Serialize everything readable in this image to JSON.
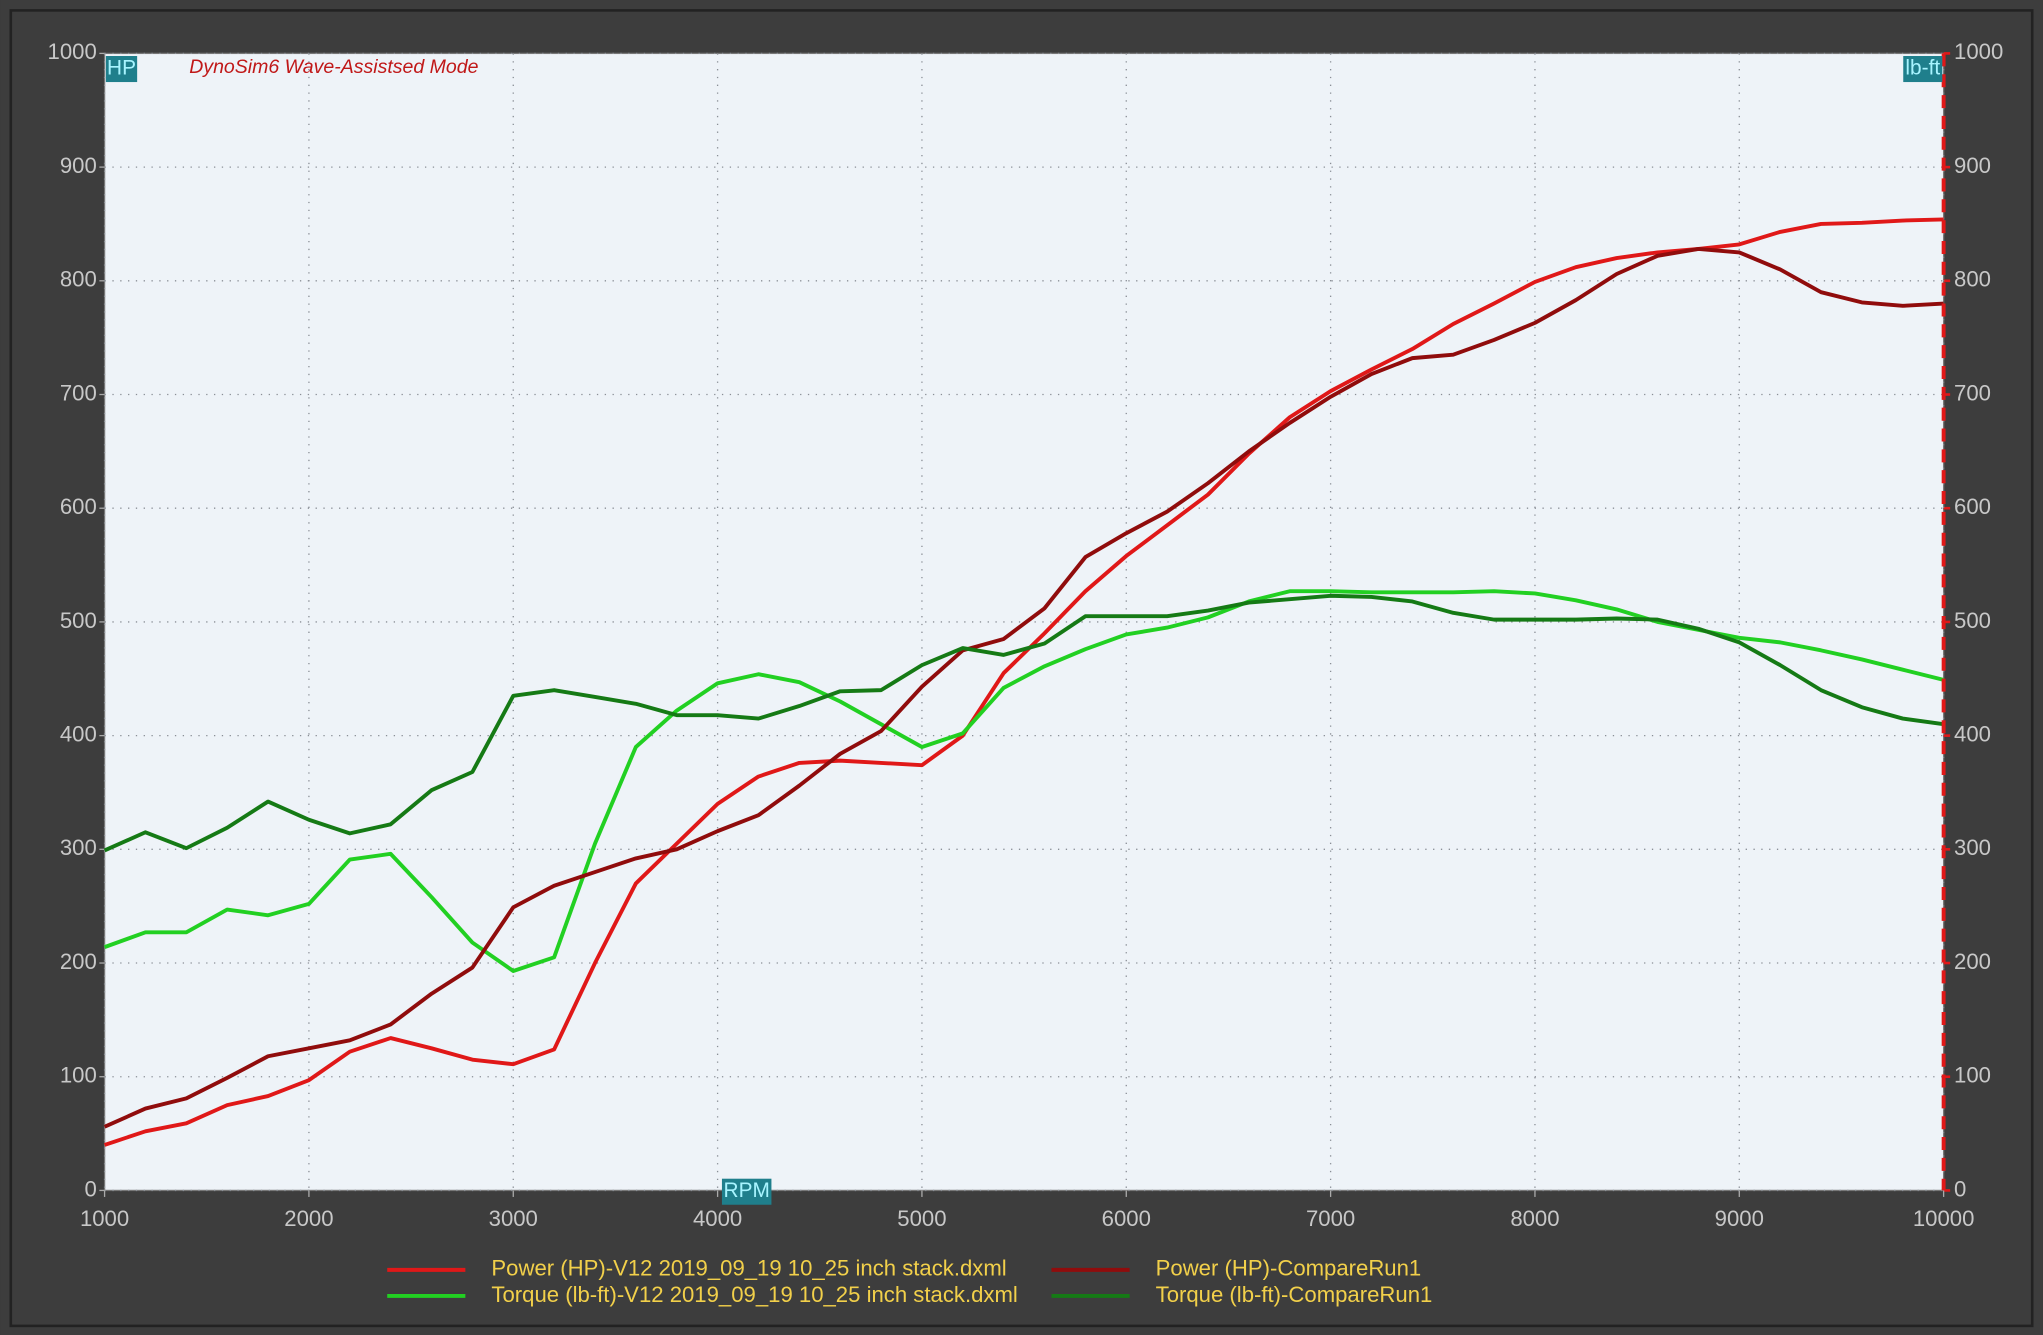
{
  "chart_data": {
    "type": "line",
    "subtitle": "DynoSim6 Wave-Assistsed Mode",
    "y_label": "HP",
    "y2_label": "lb-ft",
    "x_label": "RPM",
    "x": [
      1000,
      1200,
      1400,
      1600,
      1800,
      2000,
      2200,
      2400,
      2600,
      2800,
      3000,
      3200,
      3400,
      3600,
      3800,
      4000,
      4200,
      4400,
      4600,
      4800,
      5000,
      5200,
      5400,
      5600,
      5800,
      6000,
      6200,
      6400,
      6600,
      6800,
      7000,
      7200,
      7400,
      7600,
      7800,
      8000,
      8200,
      8400,
      8600,
      8800,
      9000,
      9200,
      9400,
      9600,
      9800,
      10000
    ],
    "series": [
      {
        "name": "Power (HP)-V12 2019_09_19 10_25 inch stack.dxml",
        "color": "#e01818",
        "values": [
          40,
          52,
          59,
          75,
          83,
          97,
          122,
          134,
          125,
          115,
          111,
          124,
          200,
          270,
          305,
          340,
          364,
          376,
          378,
          376,
          374,
          400,
          455,
          490,
          527,
          558,
          585,
          612,
          648,
          680,
          703,
          722,
          740,
          762,
          780,
          799,
          812,
          820,
          825,
          828,
          832,
          843,
          850,
          851,
          853,
          854
        ]
      },
      {
        "name": "Torque (lb-ft)-V12 2019_09_19 10_25 inch stack.dxml",
        "color": "#22d022",
        "axis": "y2",
        "values": [
          214,
          227,
          227,
          247,
          242,
          252,
          291,
          296,
          258,
          218,
          193,
          205,
          305,
          390,
          422,
          446,
          454,
          447,
          430,
          410,
          390,
          402,
          442,
          461,
          476,
          489,
          495,
          504,
          518,
          527,
          527,
          526,
          526,
          526,
          527,
          525,
          519,
          511,
          500,
          493,
          486,
          482,
          475,
          467,
          458,
          449
        ]
      },
      {
        "name": "Power (HP)-CompareRun1",
        "color": "#900c0c",
        "values": [
          56,
          72,
          81,
          99,
          118,
          125,
          132,
          146,
          173,
          196,
          249,
          268,
          280,
          292,
          300,
          316,
          330,
          356,
          384,
          404,
          443,
          475,
          485,
          512,
          557,
          578,
          597,
          622,
          650,
          675,
          698,
          718,
          732,
          735,
          748,
          763,
          783,
          806,
          822,
          828,
          825,
          810,
          790,
          781,
          778,
          780
        ]
      },
      {
        "name": "Torque (lb-ft)-CompareRun1",
        "color": "#157a15",
        "axis": "y2",
        "values": [
          299,
          315,
          301,
          319,
          342,
          326,
          314,
          322,
          352,
          368,
          435,
          440,
          434,
          428,
          418,
          418,
          415,
          426,
          439,
          440,
          462,
          477,
          471,
          481,
          505,
          505,
          505,
          510,
          517,
          520,
          523,
          522,
          518,
          508,
          502,
          502,
          502,
          503,
          502,
          494,
          482,
          462,
          440,
          425,
          415,
          410
        ]
      }
    ],
    "xlim": [
      1000,
      10000
    ],
    "xticks": [
      1000,
      2000,
      3000,
      4000,
      5000,
      6000,
      7000,
      8000,
      9000,
      10000
    ],
    "ylim": [
      0,
      1000
    ],
    "yticks": [
      0,
      100,
      200,
      300,
      400,
      500,
      600,
      700,
      800,
      900,
      1000
    ],
    "y2lim": [
      0,
      1000
    ],
    "y2ticks": [
      0,
      100,
      200,
      300,
      400,
      500,
      600,
      700,
      800,
      900,
      1000
    ],
    "grid": true
  }
}
